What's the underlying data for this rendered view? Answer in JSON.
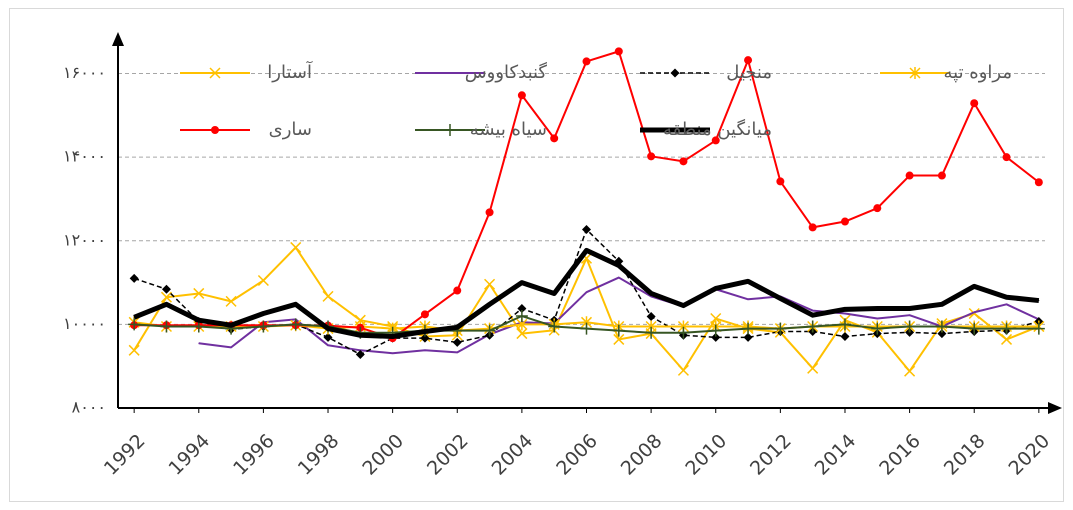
{
  "chart_data": {
    "type": "line",
    "x": [
      1992,
      1993,
      1994,
      1995,
      1996,
      1997,
      1998,
      1999,
      2000,
      2001,
      2002,
      2003,
      2004,
      2005,
      2006,
      2007,
      2008,
      2009,
      2010,
      2011,
      2012,
      2013,
      2014,
      2015,
      2016,
      2017,
      2018,
      2019,
      2020
    ],
    "xlim": [
      1991.5,
      2020.5
    ],
    "xticks": [
      1992,
      1994,
      1996,
      1998,
      2000,
      2002,
      2004,
      2006,
      2008,
      2010,
      2012,
      2014,
      2016,
      2018,
      2020
    ],
    "ylim": [
      8000,
      16850
    ],
    "yticks": [
      {
        "value": 8000,
        "label": "۸۰۰۰"
      },
      {
        "value": 10000,
        "label": "۱۰۰۰۰"
      },
      {
        "value": 12000,
        "label": "۱۲۰۰۰"
      },
      {
        "value": 14000,
        "label": "۱۴۰۰۰"
      },
      {
        "value": 16000,
        "label": "۱۶۰۰۰"
      }
    ],
    "grid": true,
    "series": [
      {
        "name": "آستارا",
        "color": "#ffc000",
        "marker": "x",
        "line_width": 2,
        "values": [
          9380,
          10650,
          10740,
          10550,
          11050,
          11840,
          10670,
          10100,
          9950,
          9710,
          9740,
          10960,
          9780,
          9860,
          11580,
          9640,
          9780,
          8900,
          10140,
          9900,
          9810,
          8950,
          10100,
          9810,
          8880,
          10020,
          10260,
          9640,
          9950
        ]
      },
      {
        "name": "گنبدکاووس",
        "color": "#7030a0",
        "marker": "none",
        "line_width": 2,
        "values": [
          null,
          null,
          9550,
          9450,
          10050,
          10120,
          9500,
          9380,
          9310,
          9380,
          9330,
          9760,
          10050,
          10020,
          10770,
          11120,
          10670,
          10430,
          10840,
          10600,
          10670,
          10330,
          10260,
          10140,
          10220,
          9950,
          10290,
          10480,
          10120
        ]
      },
      {
        "name": "منجیل",
        "color": "#000000",
        "marker": "diamond",
        "dash": true,
        "line_width": 1.5,
        "values": [
          11100,
          10840,
          10070,
          9880,
          9950,
          10000,
          9690,
          9280,
          9670,
          9670,
          9570,
          9740,
          10380,
          10100,
          12270,
          11510,
          10190,
          9740,
          9690,
          9690,
          9830,
          9830,
          9710,
          9780,
          9810,
          9780,
          9830,
          9860,
          10070
        ]
      },
      {
        "name": "مراوه تپه",
        "color": "#ffc000",
        "marker": "star",
        "line_width": 2,
        "values": [
          10050,
          9950,
          9950,
          9950,
          9950,
          9980,
          9900,
          9950,
          9900,
          9950,
          9850,
          9900,
          10000,
          10000,
          10050,
          9950,
          9950,
          9950,
          9950,
          9950,
          9900,
          9950,
          9950,
          9950,
          9950,
          9950,
          9950,
          9950,
          9950
        ]
      },
      {
        "name": "ساری",
        "color": "#ff0000",
        "marker": "circle",
        "line_width": 2,
        "values": [
          9980,
          9980,
          9980,
          9980,
          9980,
          9980,
          9970,
          9920,
          9670,
          10240,
          10810,
          12680,
          15480,
          14450,
          16290,
          16530,
          14020,
          13900,
          14400,
          16320,
          13420,
          12320,
          12460,
          12780,
          13560,
          13560,
          15290,
          14000,
          13400
        ]
      },
      {
        "name": "سیاه بیشه",
        "color": "#375623",
        "marker": "plus",
        "line_width": 2,
        "values": [
          10000,
          9950,
          9950,
          9900,
          9950,
          10000,
          9950,
          9800,
          9800,
          9850,
          9850,
          9850,
          10200,
          9950,
          9900,
          9850,
          9800,
          9800,
          9850,
          9900,
          9900,
          9950,
          10000,
          9900,
          9950,
          9950,
          9900,
          9900,
          9900
        ]
      },
      {
        "name": "میانگین منطقه",
        "color": "#000000",
        "marker": "none",
        "line_width": 5,
        "values": [
          10170,
          10480,
          10100,
          9980,
          10260,
          10480,
          9900,
          9740,
          9710,
          9830,
          9930,
          10480,
          11000,
          10740,
          11770,
          11410,
          10740,
          10450,
          10860,
          11030,
          10620,
          10220,
          10360,
          10380,
          10380,
          10480,
          10910,
          10650,
          10570
        ]
      }
    ]
  }
}
